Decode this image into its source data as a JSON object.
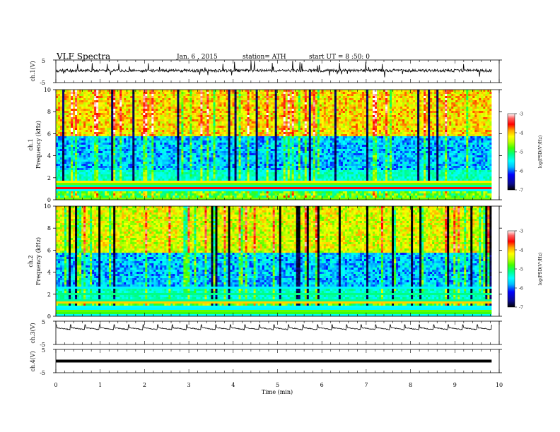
{
  "header": {
    "title": "VLF Spectra",
    "date": "Jan. 6 , 2015",
    "station": "station= ATH",
    "start": "start UT = 8 :50: 0"
  },
  "chart_data": [
    {
      "type": "line",
      "id": "ch1",
      "ylabel": "ch.1(V)",
      "ylim": [
        -5,
        5
      ],
      "yticks": [
        "5",
        "-5"
      ],
      "description_level": "noisy broadband trace around 0 V with frequent spikes"
    },
    {
      "type": "heatmap",
      "id": "ch1_spec",
      "ylabel_line1": "ch.1",
      "ylabel_line2": "Frequency (kHz)",
      "ylim": [
        0,
        10
      ],
      "yticks": [
        "0",
        "2",
        "4",
        "6",
        "8",
        "10"
      ],
      "colorbar": {
        "label": "log(PSD(V²/Hz)",
        "range": [
          -7,
          -3
        ],
        "ticks": [
          "-3",
          "-4",
          "-5",
          "-6",
          "-7"
        ]
      }
    },
    {
      "type": "heatmap",
      "id": "ch2_spec",
      "ylabel_line1": "ch.2",
      "ylabel_line2": "Frequency (kHz)",
      "ylim": [
        0,
        10
      ],
      "yticks": [
        "0",
        "2",
        "4",
        "6",
        "8",
        "10"
      ],
      "colorbar": {
        "label": "log(PSD(V²/Hz)",
        "range": [
          -7,
          -3
        ],
        "ticks": [
          "-3",
          "-4",
          "-5",
          "-6",
          "-7"
        ]
      }
    },
    {
      "type": "line",
      "id": "ch3",
      "ylabel": "ch.3(V)",
      "ylim": [
        -5,
        5
      ],
      "yticks": [
        "5",
        "-5"
      ]
    },
    {
      "type": "line",
      "id": "ch4",
      "ylabel": "ch.4(V)",
      "ylim": [
        -5,
        5
      ],
      "yticks": [
        "5",
        "-5"
      ]
    }
  ],
  "xaxis": {
    "label": "Time (min)",
    "xlim": [
      0,
      10
    ],
    "ticks": [
      "0",
      "1",
      "2",
      "3",
      "4",
      "5",
      "6",
      "7",
      "8",
      "9",
      "10"
    ],
    "data_end": 9.83
  },
  "colors": {
    "scale": [
      "#000000",
      "#0a0a8c",
      "#0000ff",
      "#00bfff",
      "#00ffff",
      "#00ff80",
      "#40ff00",
      "#bfff00",
      "#ffff00",
      "#ffa500",
      "#ff0000",
      "#ff6464",
      "#ffffff"
    ]
  }
}
